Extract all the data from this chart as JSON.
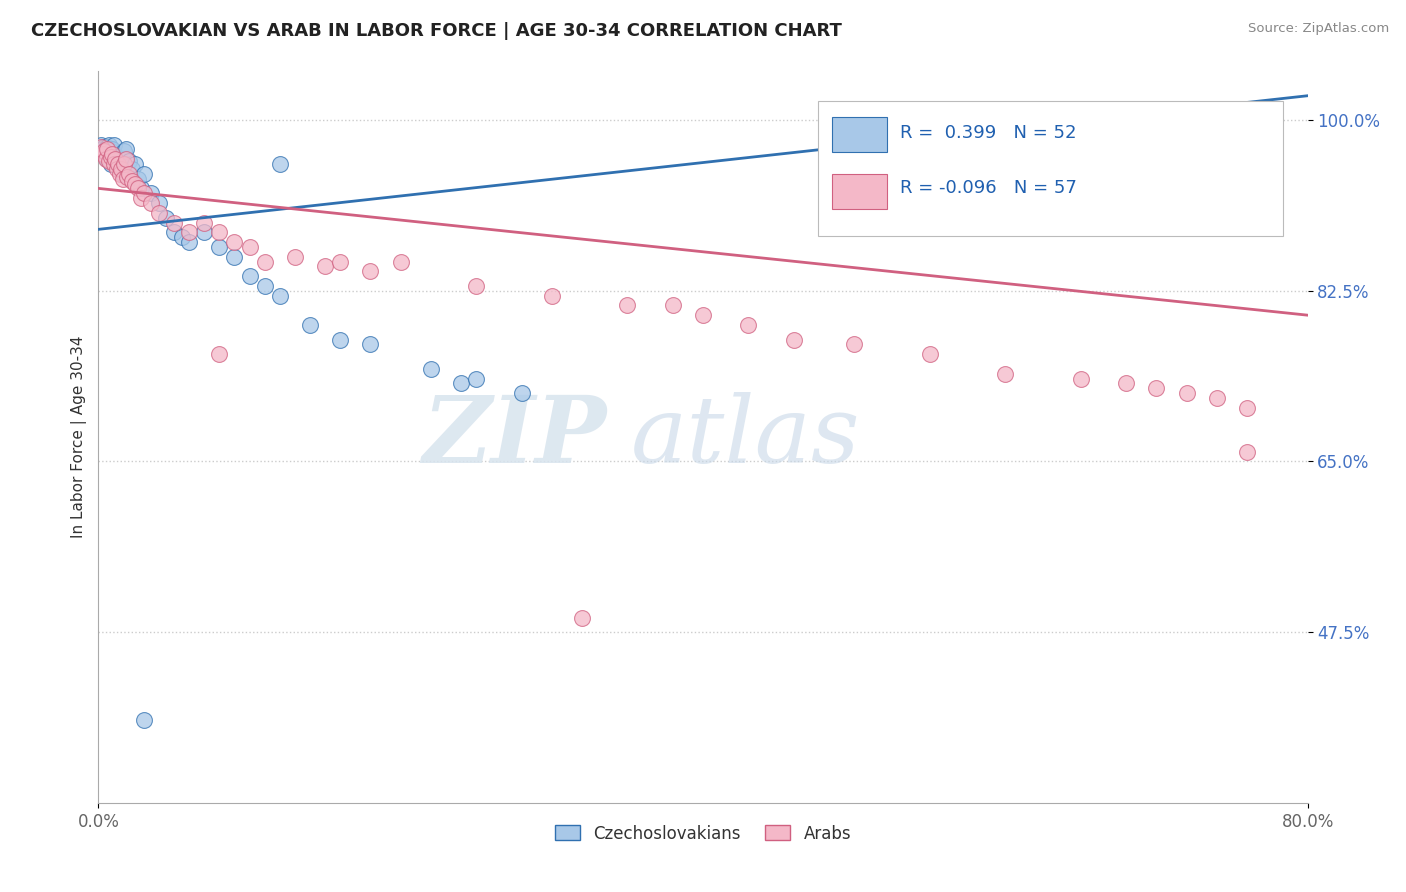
{
  "title": "CZECHOSLOVAKIAN VS ARAB IN LABOR FORCE | AGE 30-34 CORRELATION CHART",
  "source": "Source: ZipAtlas.com",
  "ylabel": "In Labor Force | Age 30-34",
  "xmin": 0.0,
  "xmax": 0.8,
  "ymin": 0.3,
  "ymax": 1.05,
  "xtick_labels": [
    "0.0%",
    "80.0%"
  ],
  "ytick_positions": [
    1.0,
    0.825,
    0.65,
    0.475
  ],
  "ytick_labels": [
    "100.0%",
    "82.5%",
    "65.0%",
    "47.5%"
  ],
  "legend_label1": "Czechoslovakians",
  "legend_label2": "Arabs",
  "R1": 0.399,
  "N1": 52,
  "R2": -0.096,
  "N2": 57,
  "color_blue": "#a8c8e8",
  "color_pink": "#f4b8c8",
  "line_blue": "#3070b0",
  "line_pink": "#d06080",
  "watermark_zip": "ZIP",
  "watermark_atlas": "atlas",
  "blue_x": [
    0.002,
    0.003,
    0.003,
    0.004,
    0.004,
    0.005,
    0.005,
    0.006,
    0.006,
    0.007,
    0.007,
    0.008,
    0.008,
    0.009,
    0.009,
    0.01,
    0.01,
    0.011,
    0.012,
    0.013,
    0.014,
    0.015,
    0.016,
    0.017,
    0.018,
    0.02,
    0.022,
    0.024,
    0.026,
    0.028,
    0.03,
    0.035,
    0.04,
    0.045,
    0.05,
    0.055,
    0.06,
    0.07,
    0.08,
    0.09,
    0.1,
    0.11,
    0.12,
    0.14,
    0.16,
    0.18,
    0.22,
    0.24,
    0.28,
    0.12,
    0.25,
    0.03
  ],
  "blue_y": [
    0.975,
    0.97,
    0.968,
    0.972,
    0.965,
    0.968,
    0.97,
    0.96,
    0.972,
    0.965,
    0.975,
    0.968,
    0.955,
    0.97,
    0.962,
    0.96,
    0.975,
    0.958,
    0.962,
    0.955,
    0.96,
    0.95,
    0.945,
    0.968,
    0.97,
    0.958,
    0.95,
    0.955,
    0.94,
    0.93,
    0.945,
    0.925,
    0.915,
    0.9,
    0.885,
    0.88,
    0.875,
    0.885,
    0.87,
    0.86,
    0.84,
    0.83,
    0.82,
    0.79,
    0.775,
    0.77,
    0.745,
    0.73,
    0.72,
    0.955,
    0.735,
    0.385
  ],
  "pink_x": [
    0.002,
    0.003,
    0.004,
    0.005,
    0.006,
    0.007,
    0.008,
    0.009,
    0.01,
    0.011,
    0.012,
    0.013,
    0.014,
    0.015,
    0.016,
    0.017,
    0.018,
    0.019,
    0.02,
    0.022,
    0.024,
    0.026,
    0.028,
    0.03,
    0.035,
    0.04,
    0.05,
    0.06,
    0.07,
    0.08,
    0.09,
    0.1,
    0.11,
    0.13,
    0.15,
    0.16,
    0.18,
    0.2,
    0.25,
    0.3,
    0.35,
    0.38,
    0.4,
    0.43,
    0.46,
    0.5,
    0.55,
    0.6,
    0.65,
    0.68,
    0.7,
    0.72,
    0.74,
    0.76,
    0.08,
    0.76,
    0.32
  ],
  "pink_y": [
    0.972,
    0.965,
    0.968,
    0.96,
    0.97,
    0.958,
    0.962,
    0.965,
    0.955,
    0.96,
    0.95,
    0.955,
    0.945,
    0.95,
    0.94,
    0.955,
    0.96,
    0.942,
    0.945,
    0.938,
    0.935,
    0.93,
    0.92,
    0.925,
    0.915,
    0.905,
    0.895,
    0.885,
    0.895,
    0.885,
    0.875,
    0.87,
    0.855,
    0.86,
    0.85,
    0.855,
    0.845,
    0.855,
    0.83,
    0.82,
    0.81,
    0.81,
    0.8,
    0.79,
    0.775,
    0.77,
    0.76,
    0.74,
    0.735,
    0.73,
    0.725,
    0.72,
    0.715,
    0.705,
    0.76,
    0.66,
    0.49
  ],
  "trend_blue_x0": 0.0,
  "trend_blue_x1": 0.8,
  "trend_blue_y0": 0.888,
  "trend_blue_y1": 1.025,
  "trend_pink_x0": 0.0,
  "trend_pink_x1": 0.8,
  "trend_pink_y0": 0.93,
  "trend_pink_y1": 0.8
}
